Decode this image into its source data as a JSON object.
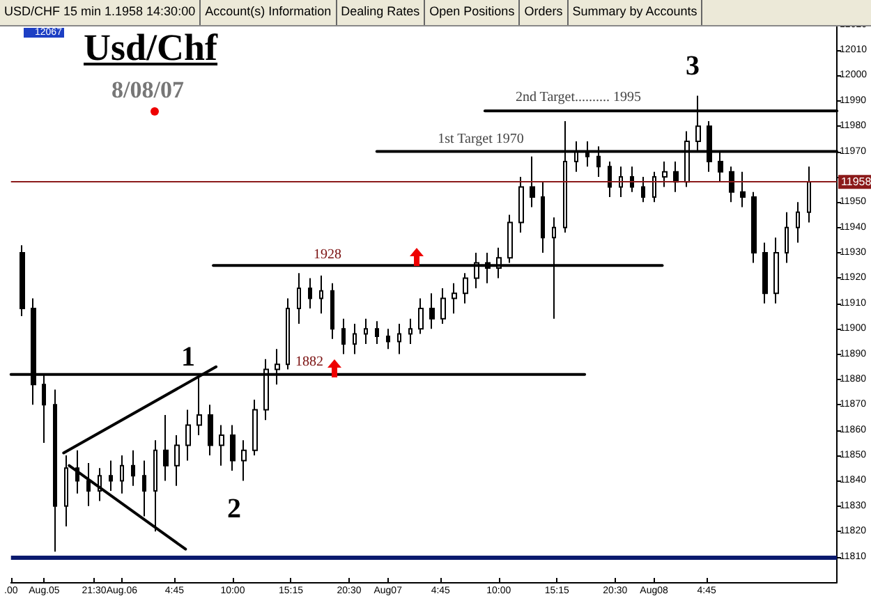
{
  "chart_data": {
    "type": "candlestick",
    "title": "Usd/Chf",
    "subtitle": "8/08/07",
    "color": "#000000",
    "annotations": [
      "USD/CHF 15 min 1.1958 14:30:00",
      "Account(s) Information",
      "Dealing Rates",
      "Open Positions",
      "Orders",
      "Summary by Accounts",
      "12067",
      "1",
      "2",
      "3",
      "1928",
      "1882",
      "1st Target 1970",
      "2nd Target.......... 1995"
    ],
    "x": [
      "--08-05T15:00",
      "--08-05T16:00",
      "--08-05T17:00",
      "--08-05T18:00",
      "--08-05T19:00",
      "--08-05T20:00",
      "--08-05T21:00",
      "--08-05T22:00",
      "--08-05T23:00",
      "--08-06T00:00",
      "--08-06T01:00",
      "--08-06T02:00",
      "--08-06T03:00",
      "--08-06T04:00",
      "--08-06T05:00",
      "--08-06T06:00",
      "--08-06T07:00",
      "--08-06T08:00",
      "--08-06T09:00",
      "--08-06T10:00",
      "--08-06T11:00",
      "--08-06T12:00",
      "--08-06T13:00",
      "--08-06T14:00",
      "--08-06T15:00",
      "--08-06T16:00",
      "--08-06T17:00",
      "--08-06T18:00",
      "--08-06T19:00",
      "--08-06T20:00",
      "--08-06T21:00",
      "--08-06T22:00",
      "--08-06T23:00",
      "--08-07T00:00",
      "--08-07T01:00",
      "--08-07T02:00",
      "--08-07T03:00",
      "--08-07T04:00",
      "--08-07T05:00",
      "--08-07T06:00",
      "--08-07T07:00",
      "--08-07T08:00",
      "--08-07T09:00",
      "--08-07T10:00",
      "--08-07T11:00",
      "--08-07T12:00",
      "--08-07T13:00",
      "--08-07T14:00",
      "--08-07T15:00",
      "--08-07T16:00",
      "--08-07T17:00",
      "--08-07T18:00",
      "--08-07T19:00",
      "--08-07T20:00",
      "--08-07T21:00",
      "--08-07T22:00",
      "--08-07T23:00",
      "--08-08T00:00",
      "--08-08T01:00",
      "--08-08T02:00",
      "--08-08T03:00",
      "--08-08T04:00",
      "--08-08T05:00",
      "--08-08T06:00",
      "--08-08T07:00",
      "--08-08T08:00",
      "--08-08T09:00",
      "--08-08T10:00",
      "--08-08T11:00",
      "--08-08T12:00",
      "--08-08T13:00",
      "--08-08T14:00"
    ],
    "ohlc": [
      [
        11930,
        11933,
        11905,
        11908
      ],
      [
        11908,
        11912,
        11870,
        11878
      ],
      [
        11878,
        11882,
        11855,
        11870
      ],
      [
        11870,
        11876,
        11812,
        11830
      ],
      [
        11830,
        11850,
        11822,
        11845
      ],
      [
        11845,
        11852,
        11835,
        11840
      ],
      [
        11840,
        11847,
        11830,
        11836
      ],
      [
        11836,
        11845,
        11832,
        11842
      ],
      [
        11842,
        11848,
        11836,
        11840
      ],
      [
        11840,
        11850,
        11835,
        11846
      ],
      [
        11846,
        11852,
        11838,
        11842
      ],
      [
        11842,
        11848,
        11826,
        11836
      ],
      [
        11836,
        11856,
        11820,
        11852
      ],
      [
        11852,
        11866,
        11840,
        11846
      ],
      [
        11846,
        11858,
        11838,
        11854
      ],
      [
        11854,
        11868,
        11848,
        11862
      ],
      [
        11862,
        11882,
        11858,
        11866
      ],
      [
        11866,
        11870,
        11850,
        11854
      ],
      [
        11854,
        11862,
        11846,
        11858
      ],
      [
        11858,
        11862,
        11844,
        11848
      ],
      [
        11848,
        11856,
        11840,
        11852
      ],
      [
        11852,
        11872,
        11850,
        11868
      ],
      [
        11868,
        11888,
        11864,
        11884
      ],
      [
        11884,
        11892,
        11878,
        11886
      ],
      [
        11886,
        11912,
        11884,
        11908
      ],
      [
        11908,
        11922,
        11902,
        11916
      ],
      [
        11916,
        11920,
        11908,
        11912
      ],
      [
        11912,
        11921,
        11906,
        11915
      ],
      [
        11915,
        11918,
        11896,
        11900
      ],
      [
        11900,
        11904,
        11890,
        11894
      ],
      [
        11894,
        11902,
        11890,
        11898
      ],
      [
        11898,
        11904,
        11894,
        11900
      ],
      [
        11900,
        11903,
        11894,
        11897
      ],
      [
        11897,
        11900,
        11892,
        11895
      ],
      [
        11895,
        11902,
        11890,
        11898
      ],
      [
        11898,
        11904,
        11894,
        11900
      ],
      [
        11900,
        11912,
        11898,
        11908
      ],
      [
        11908,
        11914,
        11900,
        11904
      ],
      [
        11904,
        11916,
        11902,
        11912
      ],
      [
        11912,
        11918,
        11906,
        11914
      ],
      [
        11914,
        11922,
        11910,
        11920
      ],
      [
        11920,
        11930,
        11916,
        11926
      ],
      [
        11926,
        11930,
        11918,
        11924
      ],
      [
        11924,
        11932,
        11920,
        11928
      ],
      [
        11928,
        11945,
        11926,
        11942
      ],
      [
        11942,
        11960,
        11938,
        11956
      ],
      [
        11956,
        11968,
        11948,
        11952
      ],
      [
        11952,
        11958,
        11930,
        11936
      ],
      [
        11936,
        11944,
        11904,
        11940
      ],
      [
        11940,
        11982,
        11938,
        11966
      ],
      [
        11966,
        11974,
        11962,
        11970
      ],
      [
        11970,
        11974,
        11964,
        11968
      ],
      [
        11968,
        11972,
        11960,
        11964
      ],
      [
        11964,
        11966,
        11952,
        11956
      ],
      [
        11956,
        11964,
        11952,
        11960
      ],
      [
        11960,
        11964,
        11954,
        11956
      ],
      [
        11956,
        11960,
        11950,
        11952
      ],
      [
        11952,
        11962,
        11950,
        11960
      ],
      [
        11960,
        11966,
        11956,
        11962
      ],
      [
        11962,
        11966,
        11954,
        11958
      ],
      [
        11958,
        11978,
        11956,
        11974
      ],
      [
        11974,
        11992,
        11970,
        11980
      ],
      [
        11980,
        11982,
        11962,
        11966
      ],
      [
        11966,
        11970,
        11958,
        11962
      ],
      [
        11962,
        11964,
        11950,
        11954
      ],
      [
        11954,
        11962,
        11948,
        11952
      ],
      [
        11952,
        11954,
        11926,
        11930
      ],
      [
        11930,
        11934,
        11910,
        11914
      ],
      [
        11914,
        11936,
        11910,
        11930
      ],
      [
        11930,
        11946,
        11926,
        11940
      ],
      [
        11940,
        11950,
        11934,
        11946
      ],
      [
        11946,
        11964,
        11942,
        11958
      ]
    ],
    "series": [
      {
        "type": "line",
        "color": "#000000",
        "x": [
          "--08-06T08:15",
          "--08-08T00:45"
        ],
        "values": [
          11925,
          11925
        ]
      },
      {
        "type": "line",
        "color": "#000000",
        "x": [
          "--08-05T14:00",
          "--08-07T17:45"
        ],
        "values": [
          11882,
          11882
        ]
      },
      {
        "type": "line",
        "color": "#000000",
        "x": [
          "--08-06T23:00",
          "--08-08T16:30"
        ],
        "values": [
          11970,
          11970
        ]
      },
      {
        "type": "line",
        "color": "#000000",
        "x": [
          "--08-07T08:45",
          "--08-08T16:30"
        ],
        "values": [
          11986,
          11986
        ]
      },
      {
        "type": "line",
        "color": "#000000",
        "x": [
          "--08-05T18:45",
          "--08-06T08:30"
        ],
        "values": [
          11851,
          11885
        ]
      },
      {
        "type": "line",
        "color": "#000000",
        "x": [
          "--08-05T19:15",
          "--08-06T05:45"
        ],
        "values": [
          11846,
          11813
        ]
      }
    ],
    "ref_lines": [
      {
        "axis": "y",
        "value": 11958,
        "label": "11958",
        "color": "#8b1a1a"
      },
      {
        "axis": "y",
        "value": 11810,
        "color": "#0a1a6e"
      }
    ],
    "xlim": [
      "--08-05T14:00",
      "--08-08T16:30"
    ],
    "xticks": [
      {
        "value": "--08-05T14:00",
        "label": ".00"
      },
      {
        "value": "--08-05T17:00",
        "label": "Aug.05"
      },
      {
        "value": "--08-05T21:30",
        "label": "21:30"
      },
      {
        "value": "--08-06T00:00",
        "label": "Aug.06"
      },
      {
        "value": "--08-06T04:45",
        "label": "4:45"
      },
      {
        "value": "--08-06T10:00",
        "label": "10:00"
      },
      {
        "value": "--08-06T15:15",
        "label": "15:15"
      },
      {
        "value": "--08-06T20:30",
        "label": "20:30"
      },
      {
        "value": "--08-07T00:00",
        "label": "Aug07"
      },
      {
        "value": "--08-07T04:45",
        "label": "4:45"
      },
      {
        "value": "--08-07T10:00",
        "label": "10:00"
      },
      {
        "value": "--08-07T15:15",
        "label": "15:15"
      },
      {
        "value": "--08-07T20:30",
        "label": "20:30"
      },
      {
        "value": "--08-08T00:00",
        "label": "Aug08"
      },
      {
        "value": "--08-08T04:45",
        "label": "4:45"
      }
    ],
    "ylim": [
      11800,
      12021
    ],
    "yticks": [
      11810,
      11820,
      11830,
      11840,
      11850,
      11860,
      11870,
      11880,
      11890,
      11900,
      11910,
      11920,
      11930,
      11940,
      11950,
      {
        "value": 11960,
        "label": null
      },
      11970,
      11980,
      11990,
      12000,
      12010,
      12020
    ],
    "grid": false,
    "marker": "none",
    "line_style": "solid"
  }
}
